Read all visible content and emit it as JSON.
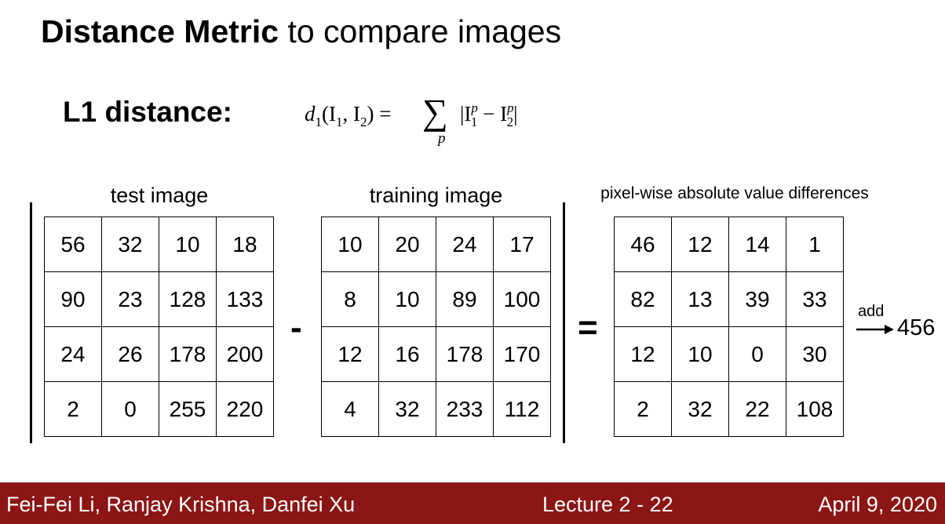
{
  "title": {
    "bold": "Distance Metric",
    "rest": " to compare images"
  },
  "l1_label": "L1 distance:",
  "formula": {
    "lhs_func": "d",
    "lhs_sub": "1",
    "lhs_args": "(I",
    "lhs_args_sub1": "1",
    "lhs_args_mid": ", I",
    "lhs_args_sub2": "2",
    "lhs_args_end": ") =",
    "sum_symbol": "∑",
    "sum_index": "p",
    "rhs_open": "|I",
    "rhs_sup1": "p",
    "rhs_sub1": "1",
    "rhs_minus": " − I",
    "rhs_sup2": "p",
    "rhs_sub2": "2",
    "rhs_close": "|"
  },
  "test_image": {
    "caption": "test image",
    "rows": [
      [
        "56",
        "32",
        "10",
        "18"
      ],
      [
        "90",
        "23",
        "128",
        "133"
      ],
      [
        "24",
        "26",
        "178",
        "200"
      ],
      [
        "2",
        "0",
        "255",
        "220"
      ]
    ]
  },
  "training_image": {
    "caption": "training image",
    "rows": [
      [
        "10",
        "20",
        "24",
        "17"
      ],
      [
        "8",
        "10",
        "89",
        "100"
      ],
      [
        "12",
        "16",
        "178",
        "170"
      ],
      [
        "4",
        "32",
        "233",
        "112"
      ]
    ]
  },
  "differences": {
    "caption": "pixel-wise absolute value differences",
    "rows": [
      [
        "46",
        "12",
        "14",
        "1"
      ],
      [
        "82",
        "13",
        "39",
        "33"
      ],
      [
        "12",
        "10",
        "0",
        "30"
      ],
      [
        "2",
        "32",
        "22",
        "108"
      ]
    ]
  },
  "operators": {
    "minus": "-",
    "equals": "="
  },
  "sum": {
    "label": "add",
    "result": "456"
  },
  "footer": {
    "authors": "Fei-Fei Li, Ranjay Krishna, Danfei Xu",
    "lecture": "Lecture 2 -   22",
    "date": "April 9, 2020"
  }
}
